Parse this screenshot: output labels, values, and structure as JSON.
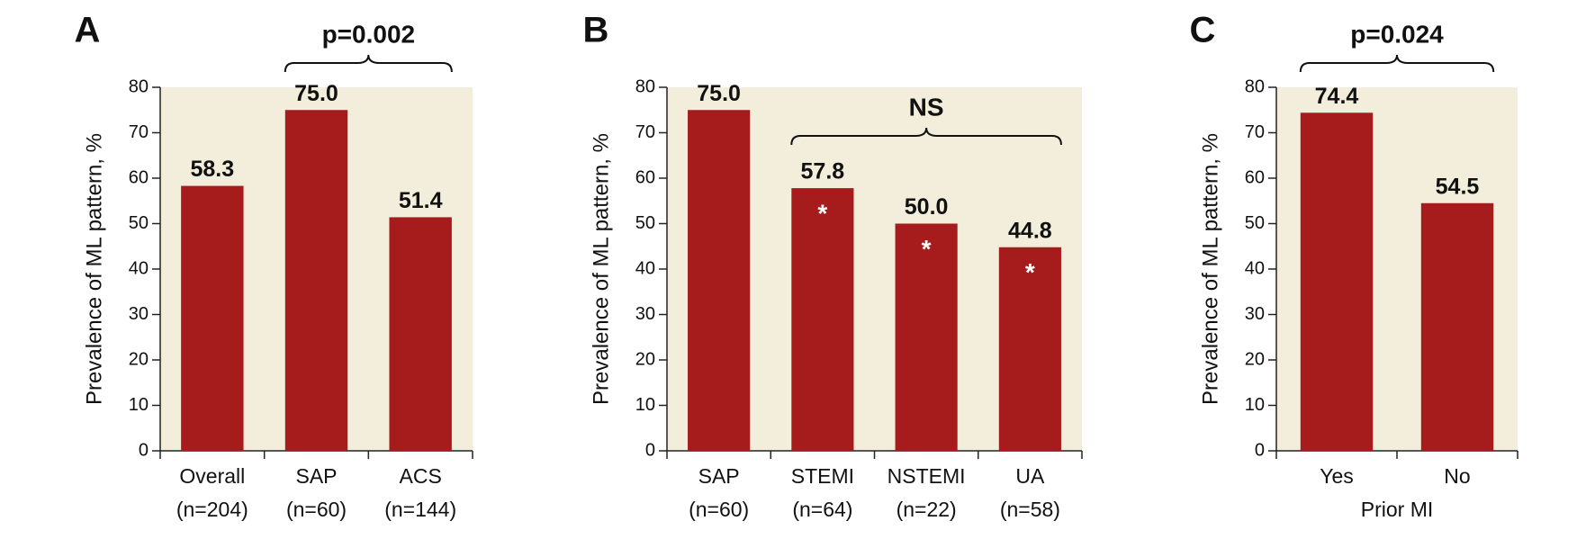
{
  "chart_data": [
    {
      "type": "bar",
      "panel": "A",
      "y_label": "Prevalence of ML pattern, %",
      "categories": [
        "Overall",
        "SAP",
        "ACS"
      ],
      "sample_sizes": [
        "(n=204)",
        "(n=60)",
        "(n=144)"
      ],
      "values": [
        58.3,
        75.0,
        51.4
      ],
      "value_labels": [
        "58.3",
        "75.0",
        "51.4"
      ],
      "color": "#a61c1c",
      "ylim": [
        0,
        80
      ],
      "yticks": [
        0,
        10,
        20,
        30,
        40,
        50,
        60,
        70,
        80
      ],
      "annotations": [
        {
          "text": "p=0.002",
          "between": [
            "SAP",
            "ACS"
          ]
        }
      ]
    },
    {
      "type": "bar",
      "panel": "B",
      "y_label": "Prevalence of ML pattern, %",
      "categories": [
        "SAP",
        "STEMI",
        "NSTEMI",
        "UA"
      ],
      "sample_sizes": [
        "(n=60)",
        "(n=64)",
        "(n=22)",
        "(n=58)"
      ],
      "values": [
        75.0,
        57.8,
        50.0,
        44.8
      ],
      "value_labels": [
        "75.0",
        "57.8",
        "50.0",
        "44.8"
      ],
      "color": "#a61c1c",
      "markers": [
        null,
        "*",
        "*",
        "*"
      ],
      "ylim": [
        0,
        80
      ],
      "yticks": [
        0,
        10,
        20,
        30,
        40,
        50,
        60,
        70,
        80
      ],
      "annotations": [
        {
          "text": "NS",
          "between": [
            "STEMI",
            "UA"
          ]
        }
      ]
    },
    {
      "type": "bar",
      "panel": "C",
      "y_label": "Prevalence of ML pattern, %",
      "x_label": "Prior MI",
      "categories": [
        "Yes",
        "No"
      ],
      "values": [
        74.4,
        54.5
      ],
      "value_labels": [
        "74.4",
        "54.5"
      ],
      "color": "#a61c1c",
      "ylim": [
        0,
        80
      ],
      "yticks": [
        0,
        10,
        20,
        30,
        40,
        50,
        60,
        70,
        80
      ],
      "annotations": [
        {
          "text": "p=0.024",
          "between": [
            "Yes",
            "No"
          ]
        }
      ]
    }
  ]
}
